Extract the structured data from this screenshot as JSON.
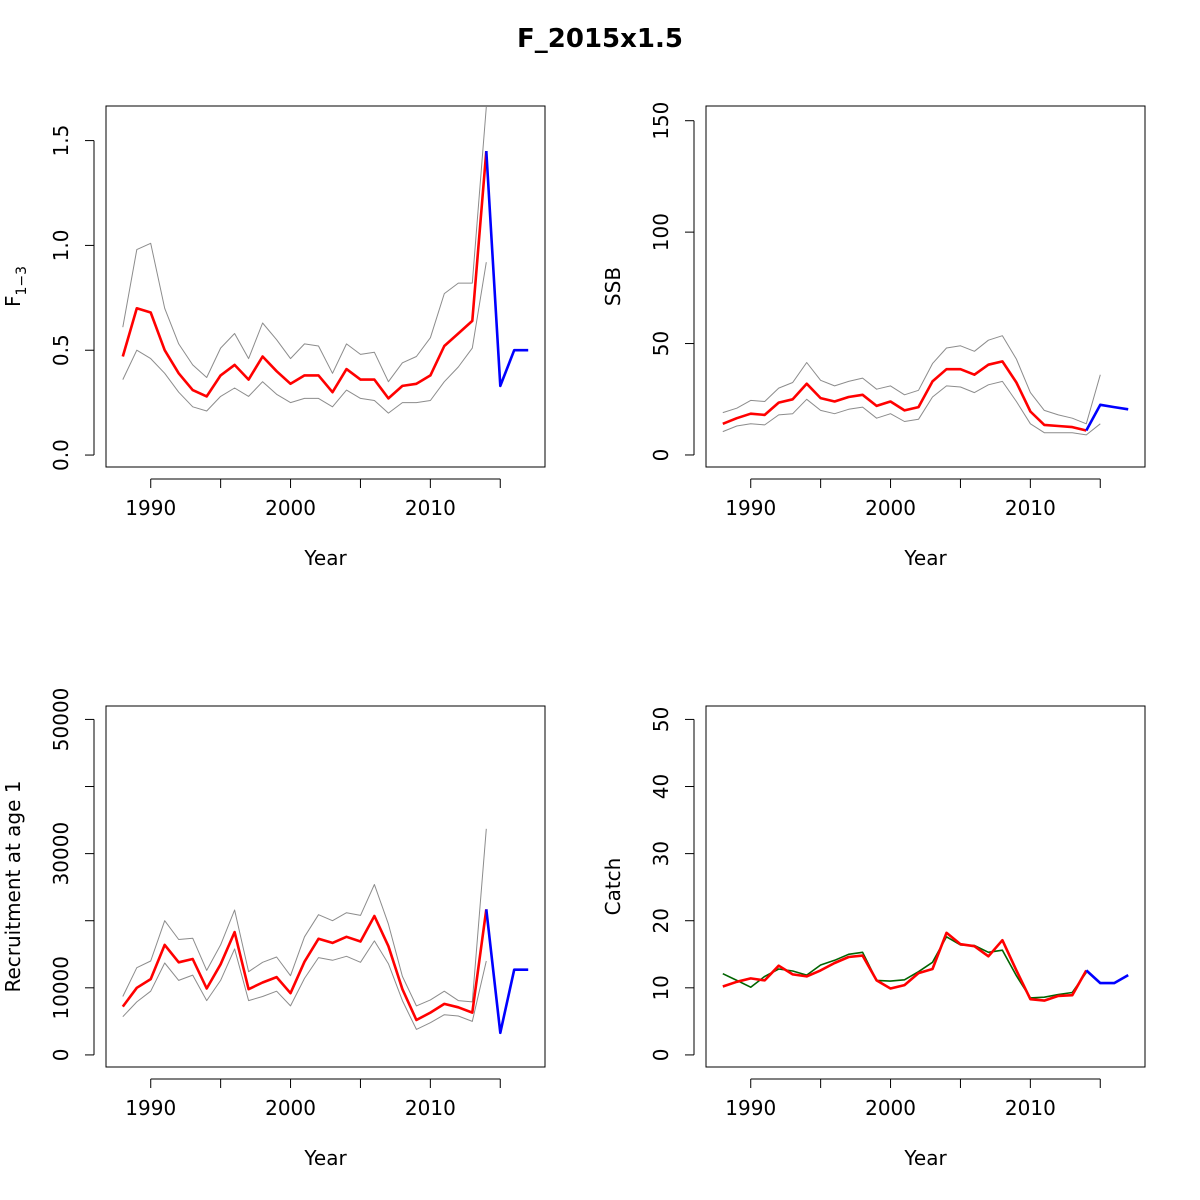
{
  "title": "F_2015x1.5",
  "colors": {
    "estimate": "#ff0000",
    "ci": "#8c8c8c",
    "projection": "#0000ff",
    "observed": "#006400",
    "frame": "#000000"
  },
  "chart_data": [
    {
      "type": "line",
      "panel": "top-left",
      "xlabel": "Year",
      "ylabel": "F",
      "ylabel_sub": "1−3",
      "xlim": [
        1986.8,
        2018.2
      ],
      "ylim": [
        -0.057,
        1.665
      ],
      "xticks": [
        1990,
        1995,
        2000,
        2005,
        2010,
        2015
      ],
      "xtick_labels": [
        "1990",
        "",
        "2000",
        "",
        "2010",
        ""
      ],
      "yticks": [
        0,
        0.5,
        1,
        1.5
      ],
      "ytick_labels": [
        "0.0",
        "0.5",
        "1.0",
        "1.5"
      ],
      "series": [
        {
          "role": "upper",
          "x": [
            1988,
            1989,
            1990,
            1991,
            1992,
            1993,
            1994,
            1995,
            1996,
            1997,
            1998,
            1999,
            2000,
            2001,
            2002,
            2003,
            2004,
            2005,
            2006,
            2007,
            2008,
            2009,
            2010,
            2011,
            2012,
            2013,
            2014
          ],
          "y": [
            0.61,
            0.98,
            1.01,
            0.7,
            0.53,
            0.43,
            0.37,
            0.51,
            0.58,
            0.46,
            0.63,
            0.55,
            0.46,
            0.53,
            0.52,
            0.39,
            0.53,
            0.48,
            0.49,
            0.35,
            0.44,
            0.47,
            0.56,
            0.77,
            0.82,
            0.82,
            1.66
          ]
        },
        {
          "role": "lower",
          "x": [
            1988,
            1989,
            1990,
            1991,
            1992,
            1993,
            1994,
            1995,
            1996,
            1997,
            1998,
            1999,
            2000,
            2001,
            2002,
            2003,
            2004,
            2005,
            2006,
            2007,
            2008,
            2009,
            2010,
            2011,
            2012,
            2013,
            2014
          ],
          "y": [
            0.36,
            0.5,
            0.46,
            0.39,
            0.3,
            0.23,
            0.21,
            0.28,
            0.32,
            0.28,
            0.35,
            0.29,
            0.25,
            0.27,
            0.27,
            0.23,
            0.31,
            0.27,
            0.26,
            0.2,
            0.25,
            0.25,
            0.26,
            0.35,
            0.42,
            0.51,
            0.92
          ]
        },
        {
          "role": "estimate",
          "x": [
            1988,
            1989,
            1990,
            1991,
            1992,
            1993,
            1994,
            1995,
            1996,
            1997,
            1998,
            1999,
            2000,
            2001,
            2002,
            2003,
            2004,
            2005,
            2006,
            2007,
            2008,
            2009,
            2010,
            2011,
            2012,
            2013,
            2014
          ],
          "y": [
            0.47,
            0.7,
            0.68,
            0.5,
            0.39,
            0.31,
            0.28,
            0.38,
            0.43,
            0.36,
            0.47,
            0.4,
            0.34,
            0.38,
            0.38,
            0.3,
            0.41,
            0.36,
            0.36,
            0.27,
            0.33,
            0.34,
            0.38,
            0.52,
            0.58,
            0.64,
            1.45
          ]
        },
        {
          "role": "projection",
          "x": [
            2014,
            2015,
            2016,
            2017
          ],
          "y": [
            1.45,
            0.33,
            0.5,
            0.5
          ]
        }
      ]
    },
    {
      "type": "line",
      "panel": "top-right",
      "xlabel": "Year",
      "ylabel": "SSB",
      "ylabel_sub": "",
      "xlim": [
        1986.8,
        2018.2
      ],
      "ylim": [
        -5.4,
        156.6
      ],
      "xticks": [
        1990,
        1995,
        2000,
        2005,
        2010,
        2015
      ],
      "xtick_labels": [
        "1990",
        "",
        "2000",
        "",
        "2010",
        ""
      ],
      "yticks": [
        0,
        50,
        100,
        150
      ],
      "ytick_labels": [
        "0",
        "50",
        "100",
        "150"
      ],
      "series": [
        {
          "role": "upper",
          "x": [
            1988,
            1989,
            1990,
            1991,
            1992,
            1993,
            1994,
            1995,
            1996,
            1997,
            1998,
            1999,
            2000,
            2001,
            2002,
            2003,
            2004,
            2005,
            2006,
            2007,
            2008,
            2009,
            2010,
            2011,
            2012,
            2013,
            2014,
            2015
          ],
          "y": [
            19,
            21,
            24.5,
            24,
            30,
            32.5,
            41.5,
            33.5,
            31,
            33,
            34.5,
            29.5,
            31,
            27,
            29,
            41,
            48,
            49,
            46.5,
            51.5,
            53.5,
            43,
            28,
            20,
            18,
            16.5,
            14,
            36
          ]
        },
        {
          "role": "lower",
          "x": [
            1988,
            1989,
            1990,
            1991,
            1992,
            1993,
            1994,
            1995,
            1996,
            1997,
            1998,
            1999,
            2000,
            2001,
            2002,
            2003,
            2004,
            2005,
            2006,
            2007,
            2008,
            2009,
            2010,
            2011,
            2012,
            2013,
            2014,
            2015
          ],
          "y": [
            10.5,
            13,
            14,
            13.5,
            18,
            18.5,
            25,
            20,
            18.5,
            20.5,
            21.5,
            16.5,
            18.5,
            15,
            16,
            26,
            31,
            30.5,
            28,
            31.5,
            33,
            24,
            14,
            10,
            10,
            10,
            9,
            14
          ]
        },
        {
          "role": "estimate",
          "x": [
            1988,
            1989,
            1990,
            1991,
            1992,
            1993,
            1994,
            1995,
            1996,
            1997,
            1998,
            1999,
            2000,
            2001,
            2002,
            2003,
            2004,
            2005,
            2006,
            2007,
            2008,
            2009,
            2010,
            2011,
            2012,
            2013,
            2014
          ],
          "y": [
            14,
            16.5,
            18.5,
            18,
            23.5,
            25,
            32,
            25.5,
            24,
            26,
            27,
            22,
            24,
            20,
            21.5,
            33,
            38.5,
            38.5,
            36,
            40.5,
            42,
            32.5,
            19.5,
            13.5,
            13,
            12.5,
            11
          ]
        },
        {
          "role": "projection",
          "x": [
            2014,
            2015,
            2016,
            2017
          ],
          "y": [
            11,
            22.5,
            21.5,
            20.5
          ]
        }
      ]
    },
    {
      "type": "line",
      "panel": "bottom-left",
      "xlabel": "Year",
      "ylabel": "Recruitment at age 1",
      "ylabel_sub": "",
      "xlim": [
        1986.8,
        2018.2
      ],
      "ylim": [
        -1800,
        52000
      ],
      "xticks": [
        1990,
        1995,
        2000,
        2005,
        2010,
        2015
      ],
      "xtick_labels": [
        "1990",
        "",
        "2000",
        "",
        "2010",
        ""
      ],
      "yticks": [
        0,
        10000,
        20000,
        30000,
        40000,
        50000
      ],
      "ytick_labels": [
        "0",
        "10000",
        "",
        "30000",
        "",
        "50000"
      ],
      "series": [
        {
          "role": "upper",
          "x": [
            1988,
            1989,
            1990,
            1991,
            1992,
            1993,
            1994,
            1995,
            1996,
            1997,
            1998,
            1999,
            2000,
            2001,
            2002,
            2003,
            2004,
            2005,
            2006,
            2007,
            2008,
            2009,
            2010,
            2011,
            2012,
            2013,
            2014
          ],
          "y": [
            8700,
            13000,
            14000,
            20000,
            17200,
            17400,
            12600,
            16400,
            21600,
            12400,
            13800,
            14600,
            11800,
            17600,
            20900,
            20000,
            21200,
            20800,
            25400,
            19500,
            11700,
            7300,
            8200,
            9500,
            8100,
            7900,
            33700
          ]
        },
        {
          "role": "lower",
          "x": [
            1988,
            1989,
            1990,
            1991,
            1992,
            1993,
            1994,
            1995,
            1996,
            1997,
            1998,
            1999,
            2000,
            2001,
            2002,
            2003,
            2004,
            2005,
            2006,
            2007,
            2008,
            2009,
            2010,
            2011,
            2012,
            2013,
            2014
          ],
          "y": [
            5700,
            7900,
            9500,
            13700,
            11100,
            11900,
            8100,
            11100,
            15800,
            8100,
            8700,
            9500,
            7300,
            11400,
            14500,
            14100,
            14700,
            13800,
            17000,
            13600,
            8100,
            3800,
            4800,
            6000,
            5800,
            5000,
            14000
          ]
        },
        {
          "role": "estimate",
          "x": [
            1988,
            1989,
            1990,
            1991,
            1992,
            1993,
            1994,
            1995,
            1996,
            1997,
            1998,
            1999,
            2000,
            2001,
            2002,
            2003,
            2004,
            2005,
            2006,
            2007,
            2008,
            2009,
            2010,
            2011,
            2012,
            2013,
            2014
          ],
          "y": [
            7200,
            10000,
            11300,
            16400,
            13800,
            14300,
            9900,
            13500,
            18300,
            9800,
            10800,
            11600,
            9200,
            13900,
            17300,
            16700,
            17600,
            16900,
            20700,
            16200,
            9800,
            5200,
            6300,
            7600,
            7100,
            6300,
            21700
          ]
        },
        {
          "role": "projection",
          "x": [
            2014,
            2015,
            2016,
            2017
          ],
          "y": [
            21700,
            3300,
            12700,
            12700
          ]
        }
      ]
    },
    {
      "type": "line",
      "panel": "bottom-right",
      "xlabel": "Year",
      "ylabel": "Catch",
      "ylabel_sub": "",
      "xlim": [
        1986.8,
        2018.2
      ],
      "ylim": [
        -1.8,
        52
      ],
      "xticks": [
        1990,
        1995,
        2000,
        2005,
        2010,
        2015
      ],
      "xtick_labels": [
        "1990",
        "",
        "2000",
        "",
        "2010",
        ""
      ],
      "yticks": [
        0,
        10,
        20,
        30,
        40,
        50
      ],
      "ytick_labels": [
        "0",
        "10",
        "20",
        "30",
        "40",
        "50"
      ],
      "series": [
        {
          "role": "observed",
          "x": [
            1988,
            1989,
            1990,
            1991,
            1992,
            1993,
            1994,
            1995,
            1996,
            1997,
            1998,
            1999,
            2000,
            2001,
            2002,
            2003,
            2004,
            2005,
            2006,
            2007,
            2008,
            2009,
            2010,
            2011,
            2012,
            2013,
            2014
          ],
          "y": [
            12.1,
            11.1,
            10.1,
            11.7,
            12.8,
            12.5,
            11.9,
            13.4,
            14.1,
            15,
            15.3,
            11.1,
            11,
            11.2,
            12.4,
            13.8,
            17.6,
            16.4,
            16.3,
            15.3,
            15.6,
            11.8,
            8.5,
            8.6,
            9,
            9.3,
            12.3
          ]
        },
        {
          "role": "estimate",
          "x": [
            1988,
            1989,
            1990,
            1991,
            1992,
            1993,
            1994,
            1995,
            1996,
            1997,
            1998,
            1999,
            2000,
            2001,
            2002,
            2003,
            2004,
            2005,
            2006,
            2007,
            2008,
            2009,
            2010,
            2011,
            2012,
            2013,
            2014
          ],
          "y": [
            10.2,
            10.9,
            11.4,
            11.1,
            13.3,
            12,
            11.7,
            12.6,
            13.7,
            14.6,
            14.8,
            11.1,
            9.9,
            10.4,
            12.2,
            12.8,
            18.2,
            16.5,
            16.2,
            14.7,
            17.1,
            12.6,
            8.3,
            8.1,
            8.8,
            8.9,
            12.6
          ]
        },
        {
          "role": "projection",
          "x": [
            2014,
            2015,
            2016,
            2017
          ],
          "y": [
            12.6,
            10.7,
            10.7,
            11.9
          ]
        }
      ]
    }
  ]
}
